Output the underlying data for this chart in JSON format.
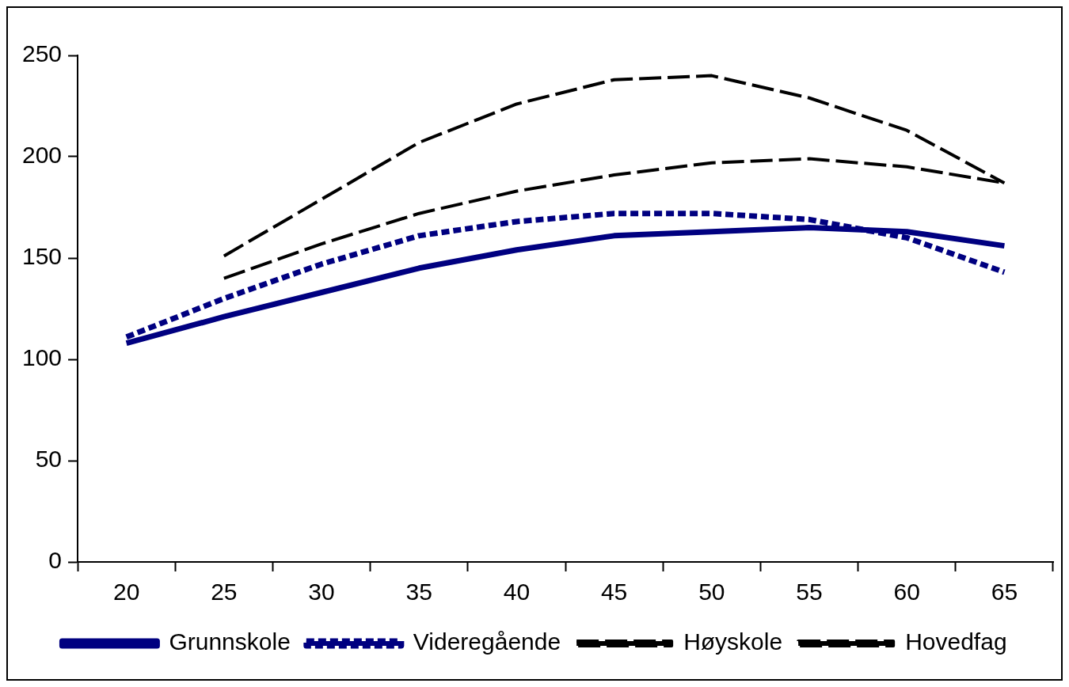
{
  "chart_data": {
    "type": "line",
    "categories": [
      "20",
      "25",
      "30",
      "35",
      "40",
      "45",
      "50",
      "55",
      "60",
      "65"
    ],
    "ylim": [
      0,
      250
    ],
    "yticks": [
      0,
      50,
      100,
      150,
      200,
      250
    ],
    "grid": false,
    "legend": "bottom",
    "marker": "none",
    "series": [
      {
        "name": "Grunnskole",
        "color": "#000080",
        "line_style": "solid",
        "values": [
          108,
          121,
          133,
          145,
          154,
          161,
          163,
          165,
          163,
          156
        ]
      },
      {
        "name": "Videregående",
        "color": "#000080",
        "line_style": "dotted",
        "values": [
          111,
          130,
          147,
          161,
          168,
          172,
          172,
          169,
          160,
          143
        ]
      },
      {
        "name": "Høyskole",
        "color": "#000000",
        "line_style": "dashed",
        "values": [
          null,
          140,
          157,
          172,
          183,
          191,
          197,
          199,
          195,
          187
        ]
      },
      {
        "name": "Hovedfag",
        "color": "#000000",
        "line_style": "dashed",
        "values": [
          null,
          151,
          179,
          207,
          226,
          238,
          240,
          229,
          213,
          187
        ]
      }
    ]
  }
}
